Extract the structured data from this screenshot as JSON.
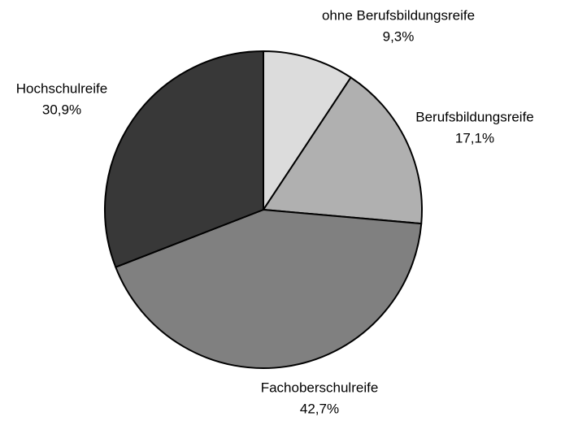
{
  "chart_data": {
    "type": "pie",
    "categories": [
      "ohne Berufsbildungsreife",
      "Berufsbildungsreife",
      "Fachoberschulreife",
      "Hochschulreife"
    ],
    "values": [
      9.3,
      17.1,
      42.7,
      30.9
    ],
    "value_labels": [
      "9,3%",
      "17,1%",
      "42,7%",
      "30,9%"
    ],
    "colors": [
      "#dcdcdc",
      "#b0b0b0",
      "#808080",
      "#383838"
    ]
  }
}
